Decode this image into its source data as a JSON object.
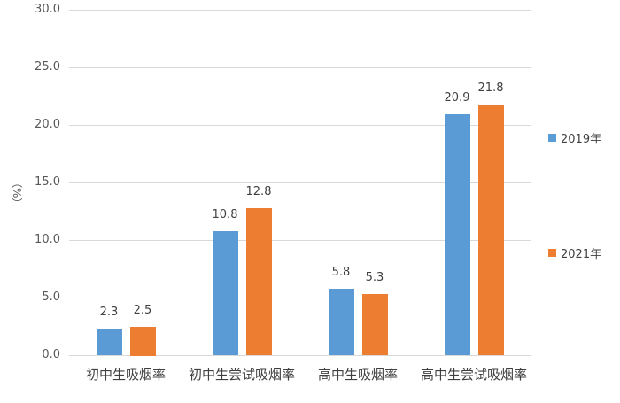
{
  "chart_data": {
    "type": "bar",
    "title": "",
    "xlabel": "",
    "ylabel": "（%）",
    "ylim": [
      0,
      30
    ],
    "yticks": [
      "0.0",
      "5.0",
      "10.0",
      "15.0",
      "20.0",
      "25.0",
      "30.0"
    ],
    "grid": true,
    "legend_position": "right",
    "categories": [
      "初中生吸烟率",
      "初中生尝试吸烟率",
      "高中生吸烟率",
      "高中生尝试吸烟率"
    ],
    "series": [
      {
        "name": "2019年",
        "color": "#5b9bd5",
        "values": [
          2.3,
          10.8,
          5.8,
          20.9
        ],
        "labels": [
          "2.3",
          "10.8",
          "5.8",
          "20.9"
        ]
      },
      {
        "name": "2021年",
        "color": "#ed7d31",
        "values": [
          2.5,
          12.8,
          5.3,
          21.8
        ],
        "labels": [
          "2.5",
          "12.8",
          "5.3",
          "21.8"
        ]
      }
    ]
  }
}
